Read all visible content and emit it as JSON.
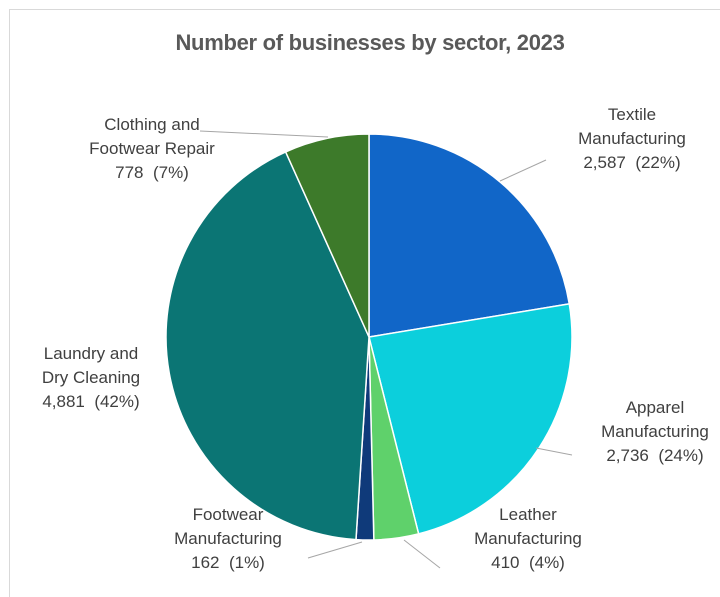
{
  "chart_data": {
    "type": "pie",
    "title": "Number of businesses by sector, 2023",
    "slices": [
      {
        "label_lines": [
          "Textile",
          "Manufacturing"
        ],
        "value": 2587,
        "value_text": "2,587",
        "percent_text": "(22%)",
        "color": "#1166c8"
      },
      {
        "label_lines": [
          "Apparel",
          "Manufacturing"
        ],
        "value": 2736,
        "value_text": "2,736",
        "percent_text": "(24%)",
        "color": "#0ccfdc"
      },
      {
        "label_lines": [
          "Leather",
          "Manufacturing"
        ],
        "value": 410,
        "value_text": "410",
        "percent_text": "(4%)",
        "color": "#5fd16b"
      },
      {
        "label_lines": [
          "Footwear",
          "Manufacturing"
        ],
        "value": 162,
        "value_text": "162",
        "percent_text": "(1%)",
        "color": "#0f3a7a"
      },
      {
        "label_lines": [
          "Laundry and",
          "Dry Cleaning"
        ],
        "value": 4881,
        "value_text": "4,881",
        "percent_text": "(42%)",
        "color": "#0b7574"
      },
      {
        "label_lines": [
          "Clothing and",
          "Footwear Repair"
        ],
        "value": 778,
        "value_text": "778",
        "percent_text": "(7%)",
        "color": "#3d7a2a"
      }
    ],
    "start_angle_deg": 0,
    "direction": "clockwise",
    "legend": "none",
    "data_labels": "outside-with-leader-lines"
  }
}
